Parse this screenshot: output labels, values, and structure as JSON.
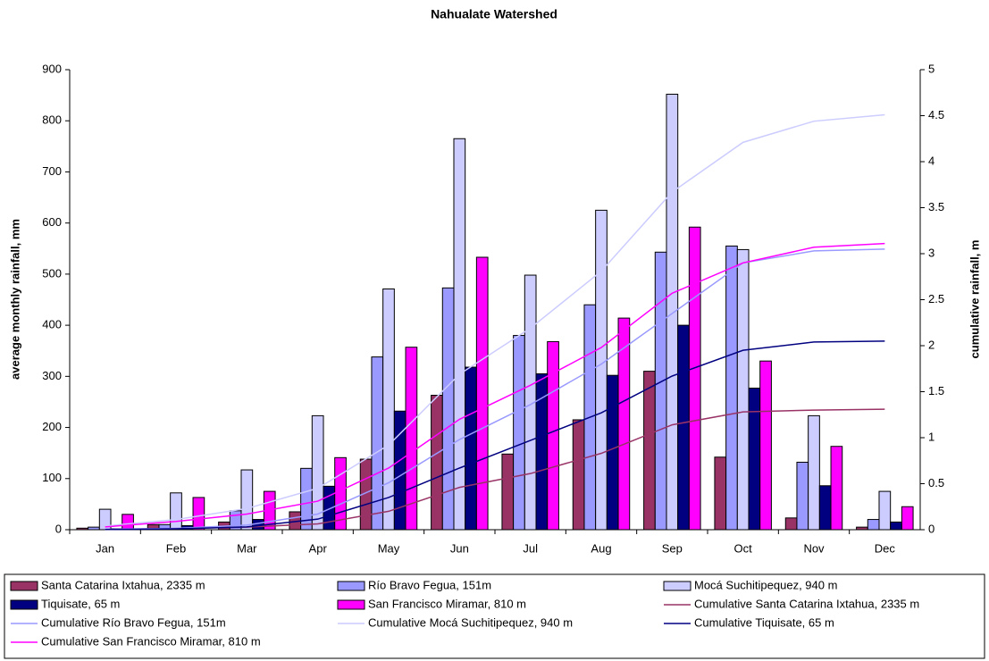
{
  "chart_data": {
    "type": "bar",
    "title": "Nahualate Watershed",
    "y_label": "average monthly rainfall, mm",
    "y2_label": "cumulative rainfall, m",
    "categories": [
      "Jan",
      "Feb",
      "Mar",
      "Apr",
      "May",
      "Jun",
      "Jul",
      "Aug",
      "Sep",
      "Oct",
      "Nov",
      "Dec"
    ],
    "ylim": [
      0,
      900
    ],
    "yticks": [
      0,
      100,
      200,
      300,
      400,
      500,
      600,
      700,
      800,
      900
    ],
    "y2lim": [
      0,
      5
    ],
    "y2ticks": [
      0,
      0.5,
      1,
      1.5,
      2,
      2.5,
      3,
      3.5,
      4,
      4.5,
      5
    ],
    "series": [
      {
        "name": "Santa Catarina Ixtahua, 2335 m",
        "type": "bar",
        "color": "#993366",
        "values": [
          3,
          10,
          15,
          35,
          138,
          263,
          148,
          215,
          310,
          142,
          23,
          5
        ]
      },
      {
        "name": "Río Bravo Fegua, 151m",
        "type": "bar",
        "color": "#9999ff",
        "values": [
          5,
          10,
          37,
          120,
          338,
          473,
          380,
          440,
          543,
          555,
          132,
          20
        ]
      },
      {
        "name": "Mocá Suchitipequez, 940 m",
        "type": "bar",
        "color": "#ccccff",
        "values": [
          40,
          72,
          117,
          223,
          471,
          765,
          498,
          625,
          852,
          548,
          223,
          75
        ]
      },
      {
        "name": "Tiquisate, 65 m",
        "type": "bar",
        "color": "#000080",
        "values": [
          2,
          8,
          20,
          85,
          232,
          318,
          305,
          302,
          400,
          277,
          86,
          15
        ]
      },
      {
        "name": "San Francisco Miramar, 810 m",
        "type": "bar",
        "color": "#ff00ff",
        "values": [
          30,
          63,
          75,
          141,
          357,
          533,
          368,
          414,
          592,
          330,
          163,
          45
        ]
      },
      {
        "name": "Cumulative Santa Catarina Ixtahua, 2335 m",
        "type": "line",
        "axis": "y2",
        "color": "#993366",
        "values": [
          0.003,
          0.013,
          0.028,
          0.063,
          0.2,
          0.46,
          0.61,
          0.83,
          1.14,
          1.28,
          1.3,
          1.31
        ]
      },
      {
        "name": "Cumulative Río Bravo Fegua, 151m",
        "type": "line",
        "axis": "y2",
        "color": "#9999ff",
        "values": [
          0.005,
          0.015,
          0.05,
          0.17,
          0.51,
          0.98,
          1.36,
          1.8,
          2.35,
          2.9,
          3.03,
          3.05
        ]
      },
      {
        "name": "Cumulative Mocá Suchitipequez, 940 m",
        "type": "line",
        "axis": "y2",
        "color": "#ccccff",
        "values": [
          0.04,
          0.11,
          0.23,
          0.45,
          0.92,
          1.69,
          2.19,
          2.81,
          3.67,
          4.21,
          4.44,
          4.51
        ]
      },
      {
        "name": "Cumulative Tiquisate, 65 m",
        "type": "line",
        "axis": "y2",
        "color": "#000080",
        "values": [
          0.002,
          0.01,
          0.03,
          0.115,
          0.35,
          0.67,
          0.97,
          1.27,
          1.67,
          1.95,
          2.04,
          2.05
        ]
      },
      {
        "name": "Cumulative San Francisco Miramar, 810 m",
        "type": "line",
        "axis": "y2",
        "color": "#ff00ff",
        "values": [
          0.03,
          0.09,
          0.17,
          0.31,
          0.67,
          1.2,
          1.57,
          1.98,
          2.57,
          2.9,
          3.07,
          3.11
        ]
      }
    ]
  }
}
